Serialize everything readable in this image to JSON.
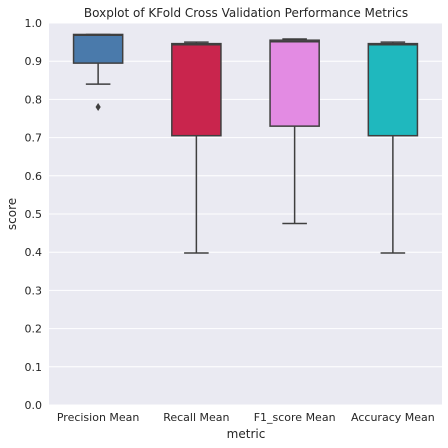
{
  "chart_data": {
    "type": "boxplot",
    "title": "Boxplot of KFold Cross Validation Performance Metrics",
    "xlabel": "metric",
    "ylabel": "score",
    "ylim": [
      0.0,
      1.0
    ],
    "yticks": [
      "0.0",
      "0.1",
      "0.2",
      "0.3",
      "0.4",
      "0.5",
      "0.6",
      "0.7",
      "0.8",
      "0.9",
      "1.0"
    ],
    "ytick_values": [
      0.0,
      0.1,
      0.2,
      0.3,
      0.4,
      0.5,
      0.6,
      0.7,
      0.8,
      0.9,
      1.0
    ],
    "grid": true,
    "background": "#eaeaf2",
    "grid_color": "#ffffff",
    "edge_color": "#3f3f3f",
    "categories": [
      "Precision Mean",
      "Recall Mean",
      "F1_score Mean",
      "Accuracy Mean"
    ],
    "boxes": [
      {
        "label": "Precision Mean",
        "color": "#4a7aab",
        "whisker_low": 0.84,
        "q1": 0.895,
        "median": 0.968,
        "q3": 0.97,
        "whisker_high": 0.97,
        "outliers": [
          0.78
        ]
      },
      {
        "label": "Recall Mean",
        "color": "#c9254d",
        "whisker_low": 0.398,
        "q1": 0.705,
        "median": 0.943,
        "q3": 0.946,
        "whisker_high": 0.95,
        "outliers": []
      },
      {
        "label": "F1_score Mean",
        "color": "#e38be3",
        "whisker_low": 0.475,
        "q1": 0.73,
        "median": 0.951,
        "q3": 0.955,
        "whisker_high": 0.958,
        "outliers": []
      },
      {
        "label": "Accuracy Mean",
        "color": "#1fb8be",
        "whisker_low": 0.398,
        "q1": 0.705,
        "median": 0.943,
        "q3": 0.946,
        "whisker_high": 0.95,
        "outliers": []
      }
    ]
  }
}
